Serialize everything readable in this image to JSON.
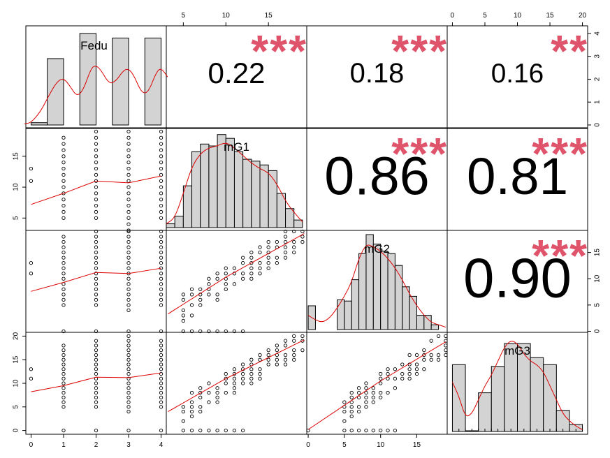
{
  "chart_data": {
    "type": "scatter-matrix",
    "variables": [
      "Fedu",
      "mG1",
      "mG2",
      "mG3"
    ],
    "colors": {
      "bar_fill": "#d3d3d3",
      "stroke": "#000000",
      "smooth": "#dd0000",
      "stars": "#df536b"
    },
    "axis_ticks": {
      "Fedu": [
        "0",
        "1",
        "2",
        "3",
        "4"
      ],
      "mG1": [
        "5",
        "10",
        "15"
      ],
      "mG2": [
        "0",
        "5",
        "10",
        "15"
      ],
      "mG3": [
        "0",
        "5",
        "10",
        "15",
        "20"
      ]
    },
    "top_right_ticks": [
      "0",
      "1",
      "2",
      "3",
      "4"
    ],
    "correlations": [
      {
        "row": 0,
        "col": 1,
        "value": "0.22",
        "stars": "***",
        "strength": 0.22
      },
      {
        "row": 0,
        "col": 2,
        "value": "0.18",
        "stars": "***",
        "strength": 0.18
      },
      {
        "row": 0,
        "col": 3,
        "value": "0.16",
        "stars": "**",
        "strength": 0.16
      },
      {
        "row": 1,
        "col": 2,
        "value": "0.86",
        "stars": "***",
        "strength": 0.86
      },
      {
        "row": 1,
        "col": 3,
        "value": "0.81",
        "stars": "***",
        "strength": 0.81
      },
      {
        "row": 2,
        "col": 3,
        "value": "0.90",
        "stars": "***",
        "strength": 0.9
      }
    ],
    "histograms": {
      "Fedu": {
        "bins": [
          [
            0,
            0.5,
            0.1
          ],
          [
            0.5,
            1,
            2.9
          ],
          [
            1.5,
            2,
            4.0
          ],
          [
            2.5,
            3,
            3.8
          ],
          [
            3.5,
            4,
            3.8
          ]
        ]
      },
      "mG1": {
        "bins": [
          [
            3,
            4,
            0.2
          ],
          [
            4,
            5,
            0.6
          ],
          [
            5,
            6,
            2.2
          ],
          [
            6,
            7,
            4.0
          ],
          [
            7,
            8,
            4.4
          ],
          [
            8,
            9,
            4.3
          ],
          [
            9,
            10,
            4.9
          ],
          [
            10,
            11,
            4.7
          ],
          [
            11,
            12,
            4.0
          ],
          [
            12,
            13,
            3.6
          ],
          [
            13,
            14,
            3.5
          ],
          [
            14,
            15,
            3.3
          ],
          [
            15,
            16,
            3.0
          ],
          [
            16,
            17,
            1.8
          ],
          [
            17,
            18,
            1.0
          ],
          [
            18,
            19,
            0.4
          ]
        ]
      },
      "mG2": {
        "bins": [
          [
            0,
            1,
            1.0
          ],
          [
            1,
            2,
            0
          ],
          [
            2,
            3,
            0
          ],
          [
            3,
            4,
            0
          ],
          [
            4,
            5,
            1.25
          ],
          [
            5,
            6,
            1.2
          ],
          [
            6,
            7,
            2.1
          ],
          [
            7,
            8,
            3.2
          ],
          [
            8,
            9,
            4.0
          ],
          [
            9,
            10,
            3.6
          ],
          [
            10,
            11,
            3.3
          ],
          [
            11,
            12,
            3.2
          ],
          [
            12,
            13,
            2.7
          ],
          [
            13,
            14,
            1.8
          ],
          [
            14,
            15,
            1.4
          ],
          [
            15,
            16,
            0.6
          ],
          [
            16,
            17,
            0.6
          ],
          [
            17,
            18,
            0.2
          ]
        ]
      },
      "mG3": {
        "bins": [
          [
            0,
            2,
            1.9
          ],
          [
            2,
            4,
            0.02
          ],
          [
            4,
            6,
            1.1
          ],
          [
            6,
            8,
            1.85
          ],
          [
            8,
            10,
            2.5
          ],
          [
            10,
            12,
            2.5
          ],
          [
            12,
            14,
            2.1
          ],
          [
            14,
            16,
            1.9
          ],
          [
            16,
            18,
            0.6
          ],
          [
            18,
            20,
            0.2
          ]
        ]
      }
    },
    "densities": {
      "Fedu": [
        [
          -0.2,
          0.05
        ],
        [
          0,
          0.1
        ],
        [
          0.3,
          0.6
        ],
        [
          0.55,
          1.3
        ],
        [
          0.8,
          1.9
        ],
        [
          1,
          2.05
        ],
        [
          1.2,
          1.7
        ],
        [
          1.4,
          1.25
        ],
        [
          1.6,
          1.5
        ],
        [
          1.85,
          2.5
        ],
        [
          2,
          2.6
        ],
        [
          2.15,
          2.4
        ],
        [
          2.4,
          1.8
        ],
        [
          2.6,
          1.9
        ],
        [
          2.85,
          2.4
        ],
        [
          3,
          2.45
        ],
        [
          3.15,
          2.2
        ],
        [
          3.4,
          1.4
        ],
        [
          3.6,
          1.4
        ],
        [
          3.85,
          2.3
        ],
        [
          4,
          2.5
        ],
        [
          4.2,
          2.1
        ]
      ],
      "mG1": [
        [
          3,
          0.2
        ],
        [
          4,
          0.5
        ],
        [
          5,
          1.8
        ],
        [
          6,
          3.2
        ],
        [
          7,
          3.9
        ],
        [
          8,
          4.2
        ],
        [
          9,
          4.3
        ],
        [
          10,
          4.5
        ],
        [
          11,
          4.2
        ],
        [
          12,
          3.8
        ],
        [
          13,
          3.4
        ],
        [
          14,
          3.1
        ],
        [
          15,
          2.9
        ],
        [
          16,
          2.3
        ],
        [
          17,
          1.4
        ],
        [
          18,
          0.8
        ],
        [
          19,
          0.3
        ]
      ],
      "mG2": [
        [
          0,
          0.6
        ],
        [
          1,
          0.4
        ],
        [
          2,
          0.3
        ],
        [
          3,
          0.5
        ],
        [
          4,
          0.9
        ],
        [
          5,
          1.4
        ],
        [
          6,
          2.0
        ],
        [
          7,
          3.0
        ],
        [
          8,
          3.6
        ],
        [
          9,
          3.5
        ],
        [
          10,
          3.3
        ],
        [
          11,
          3.0
        ],
        [
          12,
          2.6
        ],
        [
          13,
          2.1
        ],
        [
          14,
          1.5
        ],
        [
          15,
          1.0
        ],
        [
          16,
          0.6
        ],
        [
          17,
          0.3
        ],
        [
          18,
          0.2
        ],
        [
          19,
          0.1
        ]
      ],
      "mG3": [
        [
          0,
          1.4
        ],
        [
          1,
          1.0
        ],
        [
          2,
          0.4
        ],
        [
          3,
          0.5
        ],
        [
          4,
          0.9
        ],
        [
          5,
          1.3
        ],
        [
          6,
          1.6
        ],
        [
          7,
          2.0
        ],
        [
          8,
          2.4
        ],
        [
          9,
          2.6
        ],
        [
          10,
          2.5
        ],
        [
          11,
          2.2
        ],
        [
          12,
          2.0
        ],
        [
          13,
          1.9
        ],
        [
          14,
          1.7
        ],
        [
          15,
          1.3
        ],
        [
          16,
          0.9
        ],
        [
          17,
          0.5
        ],
        [
          18,
          0.3
        ],
        [
          19,
          0.15
        ],
        [
          20,
          0.05
        ]
      ]
    }
  }
}
